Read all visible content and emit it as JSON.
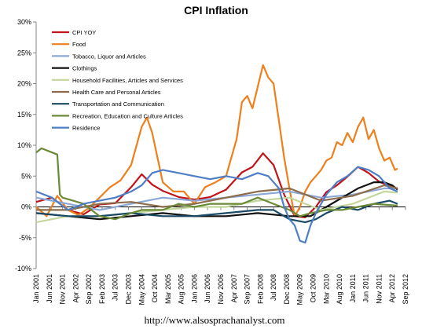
{
  "chart_data": {
    "type": "line",
    "title": "CPI Inflation",
    "footer": "http://www.alsosprachanalyst.com",
    "xlabel": "",
    "ylabel": "",
    "ylim": [
      -10,
      30
    ],
    "y_ticks": [
      "-10%",
      "-5%",
      "0%",
      "5%",
      "10%",
      "15%",
      "20%",
      "25%",
      "30%"
    ],
    "x_ticks": [
      "Jan 2001",
      "Jun 2001",
      "Nov 2001",
      "Apr 2002",
      "Sep 2002",
      "Feb 2003",
      "Jul 2003",
      "Dec 2003",
      "May 2004",
      "Oct 2004",
      "Mar 2005",
      "Aug 2005",
      "Jan 2006",
      "Jun 2006",
      "Nov 2006",
      "Apr 2007",
      "Sep 2007",
      "Feb 2008",
      "Jul 2008",
      "Dec 2008",
      "May 2009",
      "Oct 2009",
      "Mar 2010",
      "Aug 2010",
      "Jan 2011",
      "Jun 2011",
      "Nov 2011",
      "Apr 2012",
      "Sep 2012"
    ],
    "x_tick_months": [
      0,
      5,
      10,
      15,
      20,
      25,
      30,
      35,
      40,
      45,
      50,
      55,
      60,
      65,
      70,
      75,
      80,
      85,
      90,
      95,
      100,
      105,
      110,
      115,
      120,
      125,
      130,
      135,
      140
    ],
    "legend_position": "top-left",
    "grid": false,
    "series": [
      {
        "name": "CPI YOY",
        "color": "#c0131a",
        "x": [
          0,
          6,
          12,
          18,
          24,
          30,
          36,
          40,
          44,
          48,
          54,
          60,
          66,
          72,
          78,
          82,
          86,
          90,
          94,
          98,
          102,
          106,
          110,
          114,
          118,
          122,
          126,
          130,
          134,
          137
        ],
        "y": [
          0.8,
          1.5,
          -0.5,
          -1.2,
          0.4,
          0.6,
          3.2,
          5.3,
          3.6,
          2.6,
          1.6,
          1.2,
          1.6,
          2.8,
          5.6,
          6.5,
          8.7,
          6.8,
          2.0,
          -1.5,
          -1.7,
          0.0,
          2.4,
          3.5,
          4.9,
          6.5,
          5.5,
          4.1,
          3.4,
          3.0
        ]
      },
      {
        "name": "Food",
        "color": "#ee7f1d",
        "x": [
          0,
          4,
          8,
          12,
          16,
          20,
          24,
          28,
          32,
          36,
          40,
          42,
          44,
          48,
          52,
          56,
          60,
          64,
          68,
          72,
          74,
          76,
          78,
          80,
          82,
          84,
          86,
          88,
          90,
          92,
          94,
          96,
          98,
          100,
          102,
          104,
          106,
          108,
          110,
          112,
          114,
          116,
          118,
          120,
          122,
          124,
          126,
          128,
          130,
          132,
          134,
          136,
          137
        ],
        "y": [
          0.0,
          -1.5,
          1.8,
          -0.5,
          -1.3,
          -0.2,
          1.5,
          3.2,
          4.3,
          6.8,
          13.0,
          14.5,
          12.0,
          4.0,
          2.5,
          2.5,
          0.5,
          3.2,
          4.0,
          5.0,
          8.0,
          11.0,
          17.0,
          18.0,
          16.0,
          19.5,
          23.0,
          21.0,
          20.0,
          14.0,
          8.0,
          3.0,
          -1.5,
          0.0,
          2.5,
          4.0,
          5.0,
          6.0,
          7.5,
          8.0,
          10.5,
          10.0,
          12.0,
          10.5,
          13.0,
          14.5,
          11.0,
          12.5,
          9.5,
          7.5,
          8.0,
          6.0,
          6.2
        ]
      },
      {
        "name": "Tobacco, Liquor and Articles",
        "color": "#8ba8d6",
        "x": [
          0,
          12,
          24,
          36,
          48,
          60,
          72,
          84,
          96,
          108,
          120,
          132,
          137
        ],
        "y": [
          1.5,
          0.5,
          -0.5,
          0.5,
          1.5,
          1.0,
          1.5,
          2.0,
          2.5,
          1.5,
          2.0,
          3.0,
          3.0
        ]
      },
      {
        "name": "Clothings",
        "color": "#111111",
        "x": [
          0,
          12,
          24,
          36,
          48,
          60,
          72,
          84,
          96,
          104,
          110,
          116,
          122,
          128,
          132,
          135,
          137
        ],
        "y": [
          -1.0,
          -1.5,
          -2.0,
          -1.5,
          -1.0,
          -1.5,
          -1.5,
          -1.0,
          -1.5,
          -1.5,
          0.0,
          1.5,
          3.0,
          4.0,
          4.0,
          3.5,
          2.8
        ]
      },
      {
        "name": "Household Facilities, Articles and Services",
        "color": "#c3d69b",
        "x": [
          0,
          12,
          24,
          36,
          48,
          60,
          72,
          84,
          96,
          108,
          120,
          132,
          137
        ],
        "y": [
          -2.5,
          -1.5,
          -1.5,
          -1.0,
          -0.5,
          0.0,
          0.0,
          1.0,
          1.5,
          -0.5,
          0.5,
          2.5,
          2.3
        ]
      },
      {
        "name": "Health Care and Personal Articles",
        "color": "#8c6c4a",
        "x": [
          0,
          12,
          24,
          36,
          48,
          60,
          72,
          84,
          96,
          108,
          120,
          132,
          137
        ],
        "y": [
          -0.5,
          -0.5,
          0.5,
          0.8,
          0.0,
          0.5,
          1.5,
          2.5,
          3.0,
          1.0,
          1.8,
          3.5,
          3.0
        ]
      },
      {
        "name": "Transportation and Communication",
        "color": "#1b4a66",
        "x": [
          0,
          12,
          24,
          36,
          48,
          60,
          72,
          84,
          90,
          96,
          102,
          106,
          110,
          116,
          122,
          128,
          134,
          137
        ],
        "y": [
          -1.0,
          -1.5,
          -1.5,
          -1.0,
          -1.5,
          -1.5,
          -1.0,
          -0.5,
          -0.5,
          -2.0,
          -2.5,
          -2.0,
          -1.0,
          0.0,
          -0.5,
          0.5,
          1.0,
          0.5
        ]
      },
      {
        "name": "Recreation, Education and Culture Articles",
        "color": "#6a8a37",
        "x": [
          0,
          2,
          5,
          8,
          9,
          10,
          14,
          18,
          24,
          30,
          36,
          40,
          44,
          48,
          54,
          60,
          66,
          72,
          78,
          84,
          90,
          96,
          100,
          104,
          110,
          116,
          122,
          128,
          134,
          137
        ],
        "y": [
          8.8,
          9.5,
          9.0,
          8.5,
          2.0,
          1.5,
          1.0,
          0.5,
          -1.5,
          -2.0,
          -1.0,
          -0.5,
          -0.5,
          -0.5,
          0.5,
          0.0,
          0.5,
          0.5,
          0.5,
          1.5,
          0.5,
          -0.5,
          -1.5,
          -1.0,
          -0.5,
          -0.5,
          0.0,
          0.5,
          0.3,
          0.2
        ]
      },
      {
        "name": "Residence",
        "color": "#4e7fc6",
        "x": [
          0,
          6,
          12,
          18,
          24,
          30,
          36,
          40,
          44,
          48,
          54,
          60,
          66,
          72,
          78,
          84,
          88,
          92,
          94,
          96,
          98,
          100,
          102,
          104,
          106,
          110,
          114,
          118,
          122,
          126,
          130,
          134,
          137
        ],
        "y": [
          2.5,
          1.5,
          -0.5,
          0.5,
          1.0,
          1.5,
          2.5,
          3.5,
          5.5,
          6.0,
          5.5,
          5.0,
          4.5,
          5.0,
          4.5,
          5.5,
          5.0,
          3.0,
          0.0,
          -2.0,
          -3.0,
          -5.5,
          -5.8,
          -3.0,
          -1.0,
          2.0,
          4.0,
          5.0,
          6.5,
          6.0,
          5.0,
          3.0,
          2.5
        ]
      }
    ]
  }
}
